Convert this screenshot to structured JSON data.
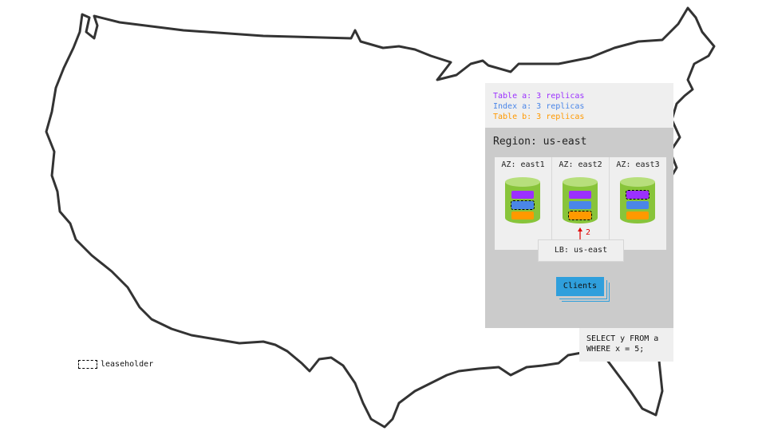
{
  "replicas": [
    {
      "text": "Table a: 3 replicas",
      "color": "#9b30ff"
    },
    {
      "text": "Index a: 3 replicas",
      "color": "#4a86e8"
    },
    {
      "text": "Table b: 3 replicas",
      "color": "#ff9900"
    }
  ],
  "region": {
    "title": "Region: us-east",
    "azs": [
      {
        "label": "AZ: east1",
        "leaseholder": "Index a"
      },
      {
        "label": "AZ: east2",
        "leaseholder": "Table b"
      },
      {
        "label": "AZ: east3",
        "leaseholder": "Table a"
      }
    ]
  },
  "arrow_label": "2",
  "lb_label": "LB: us-east",
  "clients_label": "Clients",
  "query": "SELECT y FROM a\nWHERE x = 5;",
  "legend_label": "leaseholder",
  "colors": {
    "table_a": "#9b30ff",
    "index_a": "#4a86e8",
    "table_b": "#ff9900",
    "node": "#88c43a",
    "clients": "#2f9fdc",
    "arrow": "#e00000"
  }
}
